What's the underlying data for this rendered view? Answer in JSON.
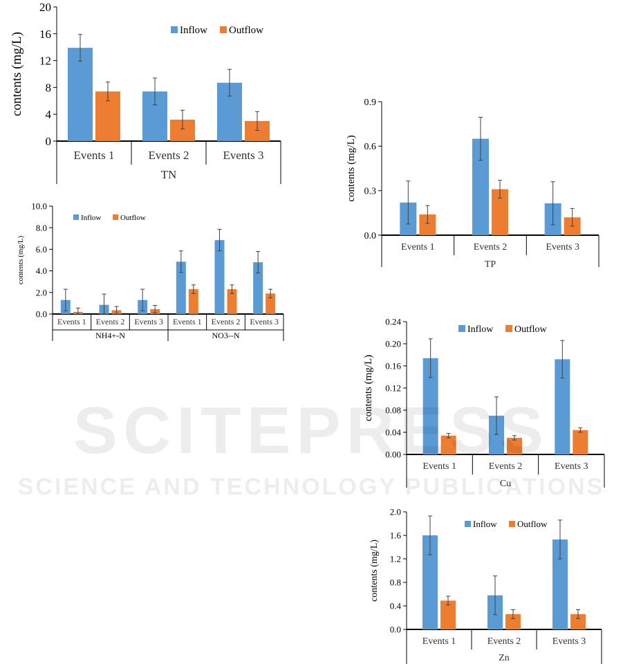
{
  "colors": {
    "inflow": "#5b9bd5",
    "outflow": "#ed7d31",
    "axis": "#000000",
    "error": "#404040",
    "watermark": "#d9d9d9"
  },
  "watermark": {
    "line1": "SCITEPRESS",
    "line2": "SCIENCE AND TECHNOLOGY PUBLICATIONS"
  },
  "chart_data": [
    {
      "id": "tn",
      "type": "bar",
      "title": "",
      "xlabel": "TN",
      "ylabel": "contents (mg/L)",
      "ylim": [
        0,
        20
      ],
      "yticks": [
        0,
        4,
        8,
        12,
        16,
        20
      ],
      "tick_decimals": 0,
      "categories": [
        "Events 1",
        "Events 2",
        "Events 3"
      ],
      "group_labels": [],
      "legend_position": "top-right",
      "series": [
        {
          "name": "Inflow",
          "values": [
            13.9,
            7.4,
            8.7
          ],
          "errors": [
            2.0,
            2.0,
            2.0
          ]
        },
        {
          "name": "Outflow",
          "values": [
            7.4,
            3.2,
            3.0
          ],
          "errors": [
            1.4,
            1.4,
            1.4
          ]
        }
      ]
    },
    {
      "id": "nn",
      "type": "bar",
      "title": "",
      "xlabel": "",
      "ylabel": "contents (mg/L)",
      "ylim": [
        0,
        10
      ],
      "yticks": [
        0,
        2,
        4,
        6,
        8,
        10
      ],
      "tick_decimals": 1,
      "categories": [
        "Events 1",
        "Events 2",
        "Events 3",
        "Events 1",
        "Events 2",
        "Events 3"
      ],
      "group_labels": [
        {
          "label": "NH4+-N",
          "span": [
            0,
            3
          ]
        },
        {
          "label": "NO3--N",
          "span": [
            3,
            6
          ]
        }
      ],
      "legend_position": "top-left",
      "series": [
        {
          "name": "Inflow",
          "values": [
            1.3,
            0.85,
            1.3,
            4.85,
            6.85,
            4.8
          ],
          "errors": [
            1.0,
            1.0,
            1.0,
            1.0,
            1.0,
            1.0
          ]
        },
        {
          "name": "Outflow",
          "values": [
            0.2,
            0.35,
            0.45,
            2.3,
            2.3,
            1.9
          ],
          "errors": [
            0.35,
            0.35,
            0.35,
            0.4,
            0.4,
            0.4
          ]
        }
      ]
    },
    {
      "id": "tp",
      "type": "bar",
      "title": "",
      "xlabel": "TP",
      "ylabel": "contents (mg/L)",
      "ylim": [
        0,
        0.9
      ],
      "yticks": [
        0,
        0.3,
        0.6,
        0.9
      ],
      "tick_decimals": 1,
      "categories": [
        "Events 1",
        "Events 2",
        "Events 3"
      ],
      "group_labels": [],
      "legend_position": "none",
      "series": [
        {
          "name": "Inflow",
          "values": [
            0.22,
            0.65,
            0.215
          ],
          "errors": [
            0.145,
            0.145,
            0.145
          ]
        },
        {
          "name": "Outflow",
          "values": [
            0.14,
            0.31,
            0.12
          ],
          "errors": [
            0.06,
            0.06,
            0.06
          ]
        }
      ]
    },
    {
      "id": "cu",
      "type": "bar",
      "title": "",
      "xlabel": "Cu",
      "ylabel": "contents (mg/L)",
      "ylim": [
        0,
        0.24
      ],
      "yticks": [
        0,
        0.04,
        0.08,
        0.12,
        0.16,
        0.2,
        0.24
      ],
      "tick_decimals": 2,
      "categories": [
        "Events 1",
        "Events 2",
        "Events 3"
      ],
      "group_labels": [],
      "legend_position": "top-right",
      "series": [
        {
          "name": "Inflow",
          "values": [
            0.174,
            0.07,
            0.172
          ],
          "errors": [
            0.035,
            0.034,
            0.034
          ]
        },
        {
          "name": "Outflow",
          "values": [
            0.034,
            0.03,
            0.044
          ],
          "errors": [
            0.004,
            0.004,
            0.004
          ]
        }
      ]
    },
    {
      "id": "zn",
      "type": "bar",
      "title": "",
      "xlabel": "Zn",
      "ylabel": "contents (mg/L)",
      "ylim": [
        0,
        2.0
      ],
      "yticks": [
        0,
        0.4,
        0.8,
        1.2,
        1.6,
        2.0
      ],
      "tick_decimals": 1,
      "categories": [
        "Events 1",
        "Events 2",
        "Events 3"
      ],
      "group_labels": [],
      "legend_position": "top-right",
      "series": [
        {
          "name": "Inflow",
          "values": [
            1.6,
            0.58,
            1.53
          ],
          "errors": [
            0.33,
            0.33,
            0.33
          ]
        },
        {
          "name": "Outflow",
          "values": [
            0.49,
            0.26,
            0.26
          ],
          "errors": [
            0.075,
            0.075,
            0.075
          ]
        }
      ]
    }
  ]
}
